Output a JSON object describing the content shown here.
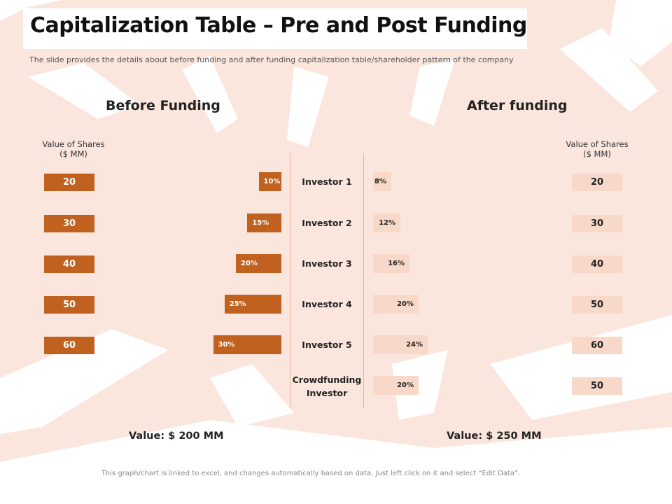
{
  "title": "Capitalization Table – Pre and Post Funding",
  "subtitle": "The slide provides the details about before funding  and after funding  capitalization table/shareholder pattern of the company",
  "before": {
    "heading": "Before Funding",
    "value_label_line1": "Value of Shares",
    "value_label_line2": "($ MM)",
    "total": "Value: $ 200 MM"
  },
  "after": {
    "heading": "After funding",
    "value_label_line1": "Value of Shares",
    "value_label_line2": "($ MM)",
    "total": "Value: $ 250 MM"
  },
  "footnote": "This graph/chart is linked to excel, and changes automatically based on data. Just left click on it and select “Edit Data”.",
  "colors": {
    "before_bar": "#c0611f",
    "after_bar": "#f8d8c8",
    "background_wash": "#fbe6dd"
  },
  "chart_data": [
    {
      "type": "bar",
      "orientation": "horizontal",
      "direction": "right-to-left",
      "title": "Before Funding",
      "categories": [
        "Investor 1",
        "Investor 2",
        "Investor 3",
        "Investor 4",
        "Investor 5"
      ],
      "values": [
        10,
        15,
        20,
        25,
        30
      ],
      "value_labels": [
        "10%",
        "15%",
        "20%",
        "25%",
        "30%"
      ],
      "share_values": [
        "20",
        "30",
        "40",
        "50",
        "60"
      ],
      "unit": "%"
    },
    {
      "type": "bar",
      "orientation": "horizontal",
      "direction": "left-to-right",
      "title": "After funding",
      "categories": [
        "Investor 1",
        "Investor 2",
        "Investor 3",
        "Investor 4",
        "Investor 5",
        "Crowdfunding Investor"
      ],
      "category_lines": [
        [
          "Investor 1"
        ],
        [
          "Investor 2"
        ],
        [
          "Investor 3"
        ],
        [
          "Investor 4"
        ],
        [
          "Investor 5"
        ],
        [
          "Crowdfunding",
          "Investor"
        ]
      ],
      "values": [
        8,
        12,
        16,
        20,
        24,
        20
      ],
      "value_labels": [
        "8%",
        "12%",
        "16%",
        "20%",
        "24%",
        "20%"
      ],
      "share_values": [
        "20",
        "30",
        "40",
        "50",
        "60",
        "50"
      ],
      "unit": "%"
    }
  ]
}
